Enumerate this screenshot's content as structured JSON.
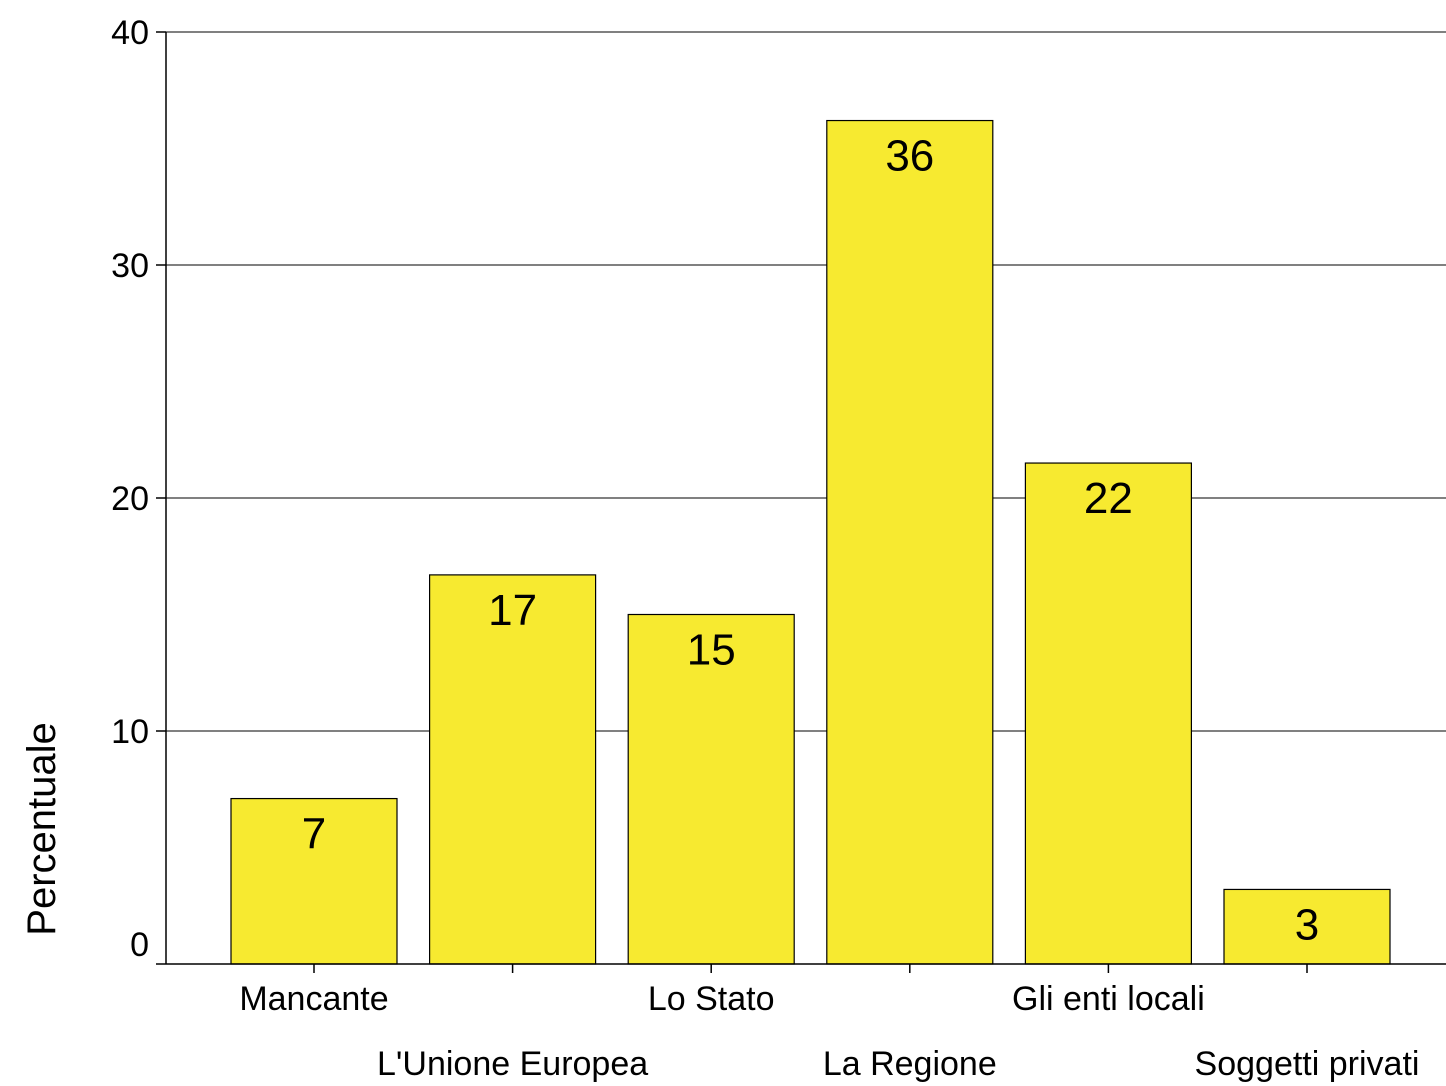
{
  "chart_data": {
    "type": "bar",
    "title": "",
    "xlabel": "",
    "ylabel": "Percentuale",
    "ylim": [
      0,
      40
    ],
    "yticks": [
      0,
      10,
      20,
      30,
      40
    ],
    "grid": true,
    "legend": "none",
    "bar_color": "#f7ea30",
    "categories": [
      "Mancante",
      "L'Unione Europea",
      "Lo Stato",
      "La Regione",
      "Gli enti locali",
      "Soggetti privati"
    ],
    "values": [
      7.1,
      16.7,
      15.0,
      36.2,
      21.5,
      3.2
    ],
    "data_labels": [
      "7",
      "17",
      "15",
      "36",
      "22",
      "3"
    ]
  }
}
